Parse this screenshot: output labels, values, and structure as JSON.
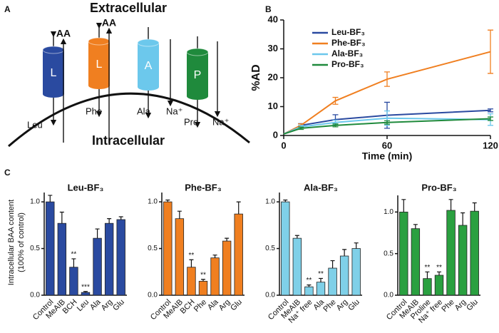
{
  "panel_a": {
    "letter": "A",
    "extracellular": "Extracellular",
    "intracellular": "Intracellular",
    "arrow_labels": [
      "AA",
      "AA"
    ],
    "transporters": [
      {
        "label": "L",
        "color": "#2a4aa0"
      },
      {
        "label": "L",
        "color": "#f07f20"
      },
      {
        "label": "A",
        "color": "#6cc8ec"
      },
      {
        "label": "P",
        "color": "#1f8a3c"
      }
    ],
    "substrates": [
      "Leu",
      "Phe",
      "Ala",
      "Na⁺",
      "Pro",
      "Na⁺"
    ]
  },
  "panel_c": {
    "letter": "C",
    "ylabel": [
      "Intracellular BAA content",
      "(100% of control)"
    ]
  },
  "chart_data": [
    {
      "type": "line",
      "letter": "B",
      "xlabel": "Time (min)",
      "ylabel": "%AD",
      "x": [
        0,
        10,
        30,
        60,
        120
      ],
      "xlim": [
        0,
        120
      ],
      "xticks": [
        0,
        60,
        120
      ],
      "ylim": [
        0,
        40
      ],
      "yticks": [
        0,
        10,
        20,
        30,
        40
      ],
      "legend": "top-left",
      "series": [
        {
          "name": "Leu-BF₃",
          "color": "#2a4aa0",
          "values": [
            0.5,
            3.5,
            5.5,
            7,
            8.7
          ],
          "errors": [
            null,
            0.6,
            1.7,
            4.5,
            0.5
          ]
        },
        {
          "name": "Phe-BF₃",
          "color": "#f07f20",
          "values": [
            0.5,
            3.5,
            12,
            19.5,
            29
          ],
          "errors": [
            null,
            0.5,
            1.2,
            2.5,
            7.5
          ]
        },
        {
          "name": "Ala-BF₃",
          "color": "#6cc8ec",
          "values": [
            0.5,
            3,
            4.5,
            6,
            5.5
          ],
          "errors": [
            null,
            0.5,
            0.8,
            2.5,
            2
          ]
        },
        {
          "name": "Pro-BF₃",
          "color": "#1f8a3c",
          "values": [
            0.5,
            2.5,
            3.5,
            4.5,
            5.8
          ],
          "errors": [
            null,
            0.4,
            0.5,
            0.6,
            0.6
          ]
        }
      ]
    },
    {
      "type": "bar",
      "title": "Leu-BF₃",
      "color": "#2a4aa0",
      "categories": [
        "Control",
        "MeAIB",
        "BCH",
        "Leu",
        "Ala",
        "Arg",
        "Glu"
      ],
      "values": [
        1.0,
        0.77,
        0.3,
        0.03,
        0.61,
        0.77,
        0.81
      ],
      "errors": [
        0.07,
        0.12,
        0.09,
        0.01,
        0.1,
        0.05,
        0.03
      ],
      "annotations": [
        null,
        null,
        "**",
        "***",
        null,
        null,
        null
      ],
      "ylim": [
        0,
        1.1
      ],
      "yticks": [
        {
          "value": 0,
          "label": "0.0"
        },
        {
          "value": 0.5,
          "label": "0.5"
        },
        {
          "value": 1,
          "label": "1.0"
        }
      ]
    },
    {
      "type": "bar",
      "title": "Phe-BF₃",
      "color": "#f07f20",
      "categories": [
        "Control",
        "MeAIB",
        "BCH",
        "Phe",
        "Ala",
        "Arg",
        "Glu"
      ],
      "values": [
        1.0,
        0.82,
        0.3,
        0.15,
        0.4,
        0.58,
        0.87
      ],
      "errors": [
        0.02,
        0.08,
        0.08,
        0.02,
        0.03,
        0.03,
        0.13
      ],
      "annotations": [
        null,
        null,
        "**",
        "**",
        null,
        null,
        null
      ],
      "ylim": [
        0,
        1.1
      ],
      "yticks": [
        {
          "value": 0,
          "label": "0.0"
        },
        {
          "value": 0.5,
          "label": "0.5"
        },
        {
          "value": 1,
          "label": "1.0"
        }
      ]
    },
    {
      "type": "bar",
      "title": "Ala-BF₃",
      "color": "#7fd0e8",
      "categories": [
        "Control",
        "MeAIB",
        "Na⁺ free",
        "Ala",
        "Phe",
        "Arg",
        "Glu"
      ],
      "values": [
        1.0,
        0.61,
        0.09,
        0.14,
        0.29,
        0.42,
        0.5
      ],
      "errors": [
        0.02,
        0.03,
        0.02,
        0.04,
        0.08,
        0.07,
        0.06
      ],
      "annotations": [
        null,
        null,
        "**",
        "**",
        null,
        null,
        null
      ],
      "ylim": [
        0,
        1.1
      ],
      "yticks": [
        {
          "value": 0,
          "label": "0.0"
        },
        {
          "value": 0.5,
          "label": "0.5"
        },
        {
          "value": 1,
          "label": "1.0"
        }
      ]
    },
    {
      "type": "bar",
      "title": "Pro-BF₃",
      "color": "#2aa040",
      "categories": [
        "Control",
        "MeAIB",
        "Proline",
        "Na⁺ free",
        "Phe",
        "Arg",
        "Glu"
      ],
      "values": [
        1.0,
        0.8,
        0.2,
        0.24,
        1.02,
        0.84,
        1.01
      ],
      "errors": [
        0.15,
        0.05,
        0.08,
        0.04,
        0.13,
        0.15,
        0.1
      ],
      "annotations": [
        null,
        null,
        "**",
        "**",
        null,
        null,
        null
      ],
      "ylim": [
        0,
        1.2
      ],
      "yticks": [
        {
          "value": 0,
          "label": "0.0"
        },
        {
          "value": 0.5,
          "label": "0.5"
        },
        {
          "value": 1,
          "label": "1.0"
        }
      ]
    }
  ]
}
